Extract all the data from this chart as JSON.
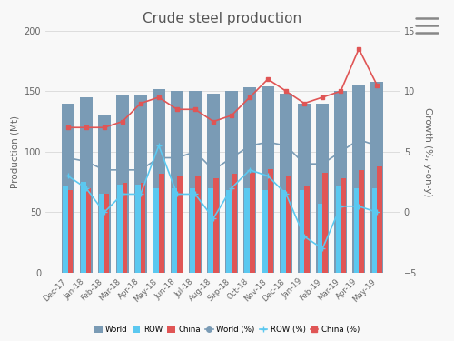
{
  "title": "Crude steel production",
  "categories": [
    "Dec-17",
    "Jan-18",
    "Feb-18",
    "Mar-18",
    "Apr-18",
    "May-18",
    "Jun-18",
    "Jul-18",
    "Aug-18",
    "Sep-18",
    "Oct-18",
    "Nov-18",
    "Dec-18",
    "Jan-19",
    "Feb-19",
    "Mar-19",
    "Apr-19",
    "May-19"
  ],
  "world_mt": [
    140,
    145,
    130,
    147,
    147,
    152,
    150,
    150,
    148,
    150,
    153,
    154,
    148,
    140,
    140,
    150,
    155,
    158
  ],
  "row_mt": [
    72,
    75,
    65,
    73,
    73,
    70,
    70,
    70,
    70,
    68,
    70,
    68,
    68,
    68,
    57,
    72,
    70,
    70
  ],
  "china_mt": [
    68,
    70,
    65,
    74,
    74,
    82,
    80,
    80,
    78,
    82,
    83,
    86,
    80,
    72,
    83,
    78,
    85,
    88
  ],
  "world_pct": [
    4.5,
    4.2,
    3.5,
    3.5,
    3.5,
    4.5,
    4.5,
    5.0,
    3.5,
    4.5,
    5.5,
    5.8,
    5.5,
    4.0,
    4.0,
    5.0,
    6.0,
    5.5
  ],
  "row_pct": [
    3.0,
    2.0,
    0.0,
    1.5,
    1.5,
    5.5,
    1.5,
    1.5,
    -0.5,
    2.0,
    3.5,
    3.0,
    1.5,
    -2.0,
    -3.0,
    0.5,
    0.5,
    0.0
  ],
  "china_pct": [
    7.0,
    7.0,
    7.0,
    7.5,
    9.0,
    9.5,
    8.5,
    8.5,
    7.5,
    8.0,
    9.5,
    11.0,
    10.0,
    9.0,
    9.5,
    10.0,
    13.5,
    10.5
  ],
  "color_world": "#7a9bb5",
  "color_row": "#5bc8f0",
  "color_china": "#e05555",
  "color_world_line": "#7a9bb5",
  "color_row_line": "#5bc8f0",
  "color_china_line": "#e05555",
  "ylabel_left": "Production (Mt)",
  "ylabel_right": "Growth (%, y-on-y)",
  "ylim_left": [
    0,
    200
  ],
  "ylim_right": [
    -5,
    15
  ],
  "yticks_left": [
    0,
    50,
    100,
    150,
    200
  ],
  "yticks_right": [
    -5,
    0,
    5,
    10,
    15
  ],
  "bg_color": "#f8f8f8",
  "legend_labels": [
    "World",
    "ROW",
    "China",
    "World (%)",
    "ROW (%)",
    "China (%)"
  ]
}
